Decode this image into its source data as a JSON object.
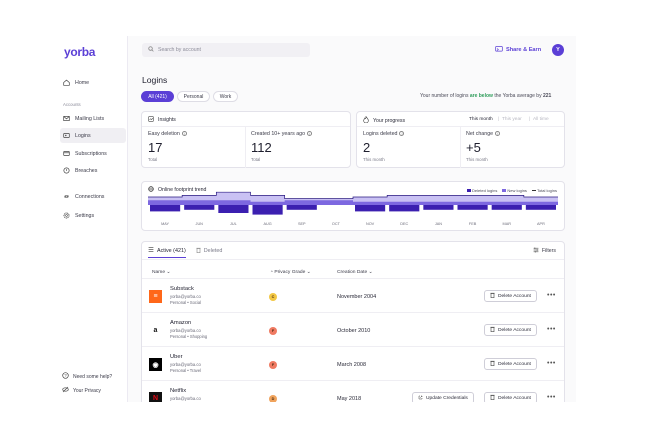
{
  "app": {
    "logo": "yorba"
  },
  "sidebar": {
    "items_top": [
      {
        "label": "Home",
        "icon": "home-icon"
      }
    ],
    "section_label": "Accounts",
    "items": [
      {
        "label": "Mailing Lists",
        "icon": "mail-icon"
      },
      {
        "label": "Logins",
        "icon": "login-icon",
        "active": true
      },
      {
        "label": "Subscriptions",
        "icon": "card-icon"
      },
      {
        "label": "Breaches",
        "icon": "alert-icon"
      }
    ],
    "items_bottom": [
      {
        "label": "Connections",
        "icon": "connections-icon"
      },
      {
        "label": "Settings",
        "icon": "gear-icon"
      }
    ],
    "help": "Need some help?",
    "privacy": "Your Privacy"
  },
  "header": {
    "search_placeholder": "Search by account",
    "share_label": "Share & Earn",
    "avatar_initial": "Y"
  },
  "page": {
    "title": "Logins",
    "chips": [
      "All (421)",
      "Personal",
      "Work"
    ],
    "note_pre": "Your number of logins ",
    "note_highlight": "are below",
    "note_mid": " the Yorba average by ",
    "note_value": "221"
  },
  "insights": {
    "title": "Insights",
    "stats": [
      {
        "label": "Easy deletion",
        "value": "17",
        "sub": "Total"
      },
      {
        "label": "Created 10+ years ago",
        "value": "112",
        "sub": "Total"
      }
    ]
  },
  "progress": {
    "title": "Your progress",
    "periods": [
      "This month",
      "This year",
      "All time"
    ],
    "stats": [
      {
        "label": "Logins deleted",
        "value": "2",
        "sub": "This month"
      },
      {
        "label": "Net change",
        "value": "+5",
        "sub": "This month"
      }
    ]
  },
  "trend": {
    "title": "Online footprint trend",
    "legend": [
      "Deleted logins",
      "New logins",
      "Total logins"
    ],
    "colors": {
      "deleted": "#3b1fb0",
      "new": "#7d68e0",
      "total": "#c9c1f3"
    }
  },
  "chart_data": {
    "type": "bar",
    "categories": [
      "MAY",
      "JUN",
      "JUL",
      "AUG",
      "SEP",
      "OCT",
      "NOV",
      "DEC",
      "JAN",
      "FEB",
      "MAR",
      "APR"
    ],
    "series": [
      {
        "name": "Deleted logins",
        "values": [
          4,
          3,
          5,
          6,
          3,
          0,
          4,
          4,
          3,
          3,
          3,
          3
        ]
      },
      {
        "name": "New logins",
        "values": [
          3,
          3,
          3,
          2,
          3,
          3,
          2,
          2,
          2,
          2,
          2,
          2
        ]
      },
      {
        "name": "Total logins",
        "values": [
          5,
          6,
          8,
          6,
          4,
          4,
          5,
          6,
          6,
          6,
          6,
          5
        ]
      }
    ]
  },
  "table": {
    "tabs": [
      {
        "label": "Active (421)",
        "icon": "list-icon"
      },
      {
        "label": "Deleted",
        "icon": "trash-icon"
      }
    ],
    "filters_label": "Filters",
    "columns": [
      "Name",
      "Privacy Grade",
      "Creation Date"
    ],
    "rows": [
      {
        "name": "Substack",
        "email": "yorba@yorba.co",
        "tags": "Personal  •  Social",
        "grade": "C",
        "grade_color": "#f2c744",
        "date": "November 2004",
        "logo": "substack-logo",
        "logo_text": "≡",
        "logo_bg": "#ff6719",
        "logo_fg": "#ffffff"
      },
      {
        "name": "Amazon",
        "email": "yorba@yorba.co",
        "tags": "Personal  •  Shopping",
        "grade": "F",
        "grade_color": "#ef7a62",
        "date": "October 2010",
        "logo": "amazon-logo",
        "logo_text": "a",
        "logo_bg": "#ffffff",
        "logo_fg": "#111111"
      },
      {
        "name": "Uber",
        "email": "yorba@yorba.co",
        "tags": "Personal  •  Travel",
        "grade": "F",
        "grade_color": "#ef7a62",
        "date": "March 2008",
        "logo": "uber-logo",
        "logo_text": "◉",
        "logo_bg": "#000000",
        "logo_fg": "#ffffff"
      },
      {
        "name": "Netflix",
        "email": "yorba@yorba.co",
        "tags": "Personal  •  Streaming",
        "grade": "D",
        "grade_color": "#f0a35c",
        "date": "May 2018",
        "logo": "netflix-logo",
        "logo_text": "N",
        "logo_bg": "#111111",
        "logo_fg": "#e50914",
        "extra_action": "Update Credentials"
      }
    ],
    "delete_label": "Delete Account",
    "more_label": "•••"
  }
}
